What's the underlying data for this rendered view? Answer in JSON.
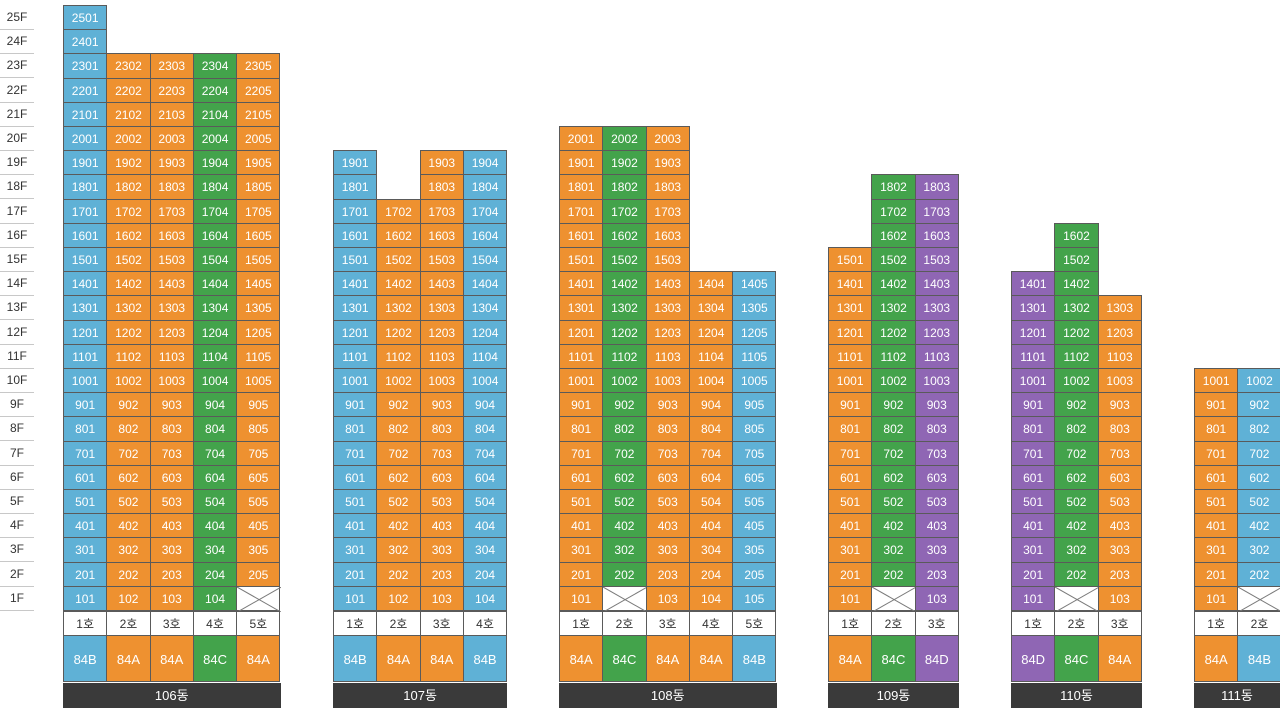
{
  "colors": {
    "84A": "#ee9130",
    "84B": "#5fb1d6",
    "84C": "#43a34b",
    "84D": "#8f66b4",
    "label_bg": "#3a3a3a"
  },
  "floors": [
    "25F",
    "24F",
    "23F",
    "22F",
    "21F",
    "20F",
    "19F",
    "18F",
    "17F",
    "16F",
    "15F",
    "14F",
    "13F",
    "12F",
    "11F",
    "10F",
    "9F",
    "8F",
    "7F",
    "6F",
    "5F",
    "4F",
    "3F",
    "2F",
    "1F"
  ],
  "buildings": [
    {
      "label": "106동",
      "columns": [
        {
          "ho": "1호",
          "type": "84B",
          "top": 25,
          "empty": []
        },
        {
          "ho": "2호",
          "type": "84A",
          "top": 23,
          "empty": []
        },
        {
          "ho": "3호",
          "type": "84A",
          "top": 23,
          "empty": []
        },
        {
          "ho": "4호",
          "type": "84C",
          "top": 23,
          "empty": []
        },
        {
          "ho": "5호",
          "type": "84A",
          "top": 23,
          "empty": [
            1
          ]
        }
      ]
    },
    {
      "label": "107동",
      "columns": [
        {
          "ho": "1호",
          "type": "84B",
          "top": 19,
          "empty": []
        },
        {
          "ho": "2호",
          "type": "84A",
          "top": 17,
          "empty": []
        },
        {
          "ho": "3호",
          "type": "84A",
          "top": 19,
          "empty": []
        },
        {
          "ho": "4호",
          "type": "84B",
          "top": 19,
          "empty": []
        }
      ]
    },
    {
      "label": "108동",
      "columns": [
        {
          "ho": "1호",
          "type": "84A",
          "top": 20,
          "empty": []
        },
        {
          "ho": "2호",
          "type": "84C",
          "top": 20,
          "empty": [
            1
          ]
        },
        {
          "ho": "3호",
          "type": "84A",
          "top": 20,
          "empty": []
        },
        {
          "ho": "4호",
          "type": "84A",
          "top": 14,
          "empty": []
        },
        {
          "ho": "5호",
          "type": "84B",
          "top": 14,
          "empty": []
        }
      ]
    },
    {
      "label": "109동",
      "columns": [
        {
          "ho": "1호",
          "type": "84A",
          "top": 15,
          "empty": []
        },
        {
          "ho": "2호",
          "type": "84C",
          "top": 18,
          "empty": [
            1
          ]
        },
        {
          "ho": "3호",
          "type": "84D",
          "top": 18,
          "empty": []
        }
      ]
    },
    {
      "label": "110동",
      "columns": [
        {
          "ho": "1호",
          "type": "84D",
          "top": 14,
          "empty": []
        },
        {
          "ho": "2호",
          "type": "84C",
          "top": 16,
          "empty": [
            1
          ]
        },
        {
          "ho": "3호",
          "type": "84A",
          "top": 13,
          "empty": []
        }
      ]
    },
    {
      "label": "111동",
      "columns": [
        {
          "ho": "1호",
          "type": "84A",
          "top": 10,
          "empty": []
        },
        {
          "ho": "2호",
          "type": "84B",
          "top": 10,
          "empty": [
            1
          ]
        }
      ]
    }
  ]
}
